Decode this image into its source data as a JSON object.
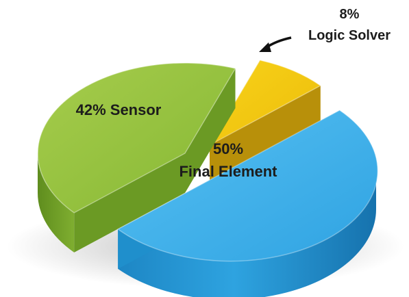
{
  "chart_data": {
    "type": "pie",
    "three_d": true,
    "exploded": true,
    "slices": [
      {
        "key": "logic",
        "pct": "8%",
        "name": "Logic Solver",
        "value": 8,
        "color": "#f2c40f",
        "side_color": "#b8900a"
      },
      {
        "key": "final",
        "pct": "50%",
        "name": "Final Element",
        "value": 50,
        "color": "#3aaee8",
        "side_color": "#1f8fcc"
      },
      {
        "key": "sensor",
        "pct": "42%",
        "name": "Sensor",
        "value": 42,
        "color": "#8dbd3a",
        "side_color": "#6b9a24"
      }
    ],
    "labels": {
      "logic": {
        "pct": "8%",
        "name": "Logic Solver"
      },
      "final": {
        "pct": "50%",
        "name": "Final Element"
      },
      "sensor": {
        "text": "42% Sensor"
      }
    }
  }
}
